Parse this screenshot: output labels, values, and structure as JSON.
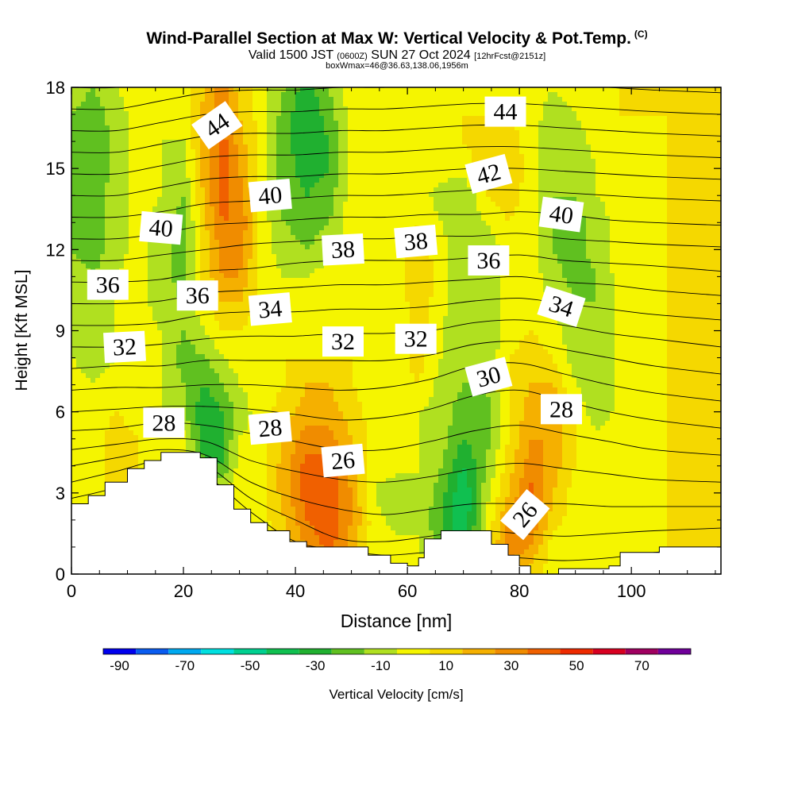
{
  "header": {
    "title": "Wind-Parallel Section at Max W: Vertical Velocity & Pot.Temp.",
    "copyright": "(C)",
    "valid_prefix": "Valid 1500 JST",
    "valid_zulu": "(0600Z)",
    "valid_date": "SUN 27 Oct 2024",
    "forecast": "[12hrFcst@2151z]",
    "box_info": "boxWmax=46@36.63,138.06,1956m"
  },
  "chart_data": {
    "type": "contour",
    "xlabel": "Distance [nm]",
    "ylabel": "Height [Kft MSL]",
    "xlim": [
      0,
      116
    ],
    "ylim": [
      0,
      18
    ],
    "x_ticks": [
      0,
      20,
      40,
      60,
      80,
      100
    ],
    "y_ticks": [
      0,
      3,
      6,
      9,
      12,
      15,
      18
    ],
    "colorbar": {
      "label": "Vertical Velocity [cm/s]",
      "bounds": [
        -90,
        -80,
        -70,
        -60,
        -50,
        -40,
        -30,
        -20,
        -10,
        0,
        10,
        20,
        30,
        40,
        50,
        60,
        70,
        80
      ],
      "tick_labels": [
        "-90",
        "-70",
        "-50",
        "-30",
        "-10",
        "10",
        "30",
        "50",
        "70"
      ],
      "colors": [
        "#0000ee",
        "#0a5cf0",
        "#00a9f0",
        "#00e0e0",
        "#00d090",
        "#10c050",
        "#20b030",
        "#60c020",
        "#b0e020",
        "#f5f500",
        "#f5d800",
        "#f5b000",
        "#f08c00",
        "#f06000",
        "#ee2a00",
        "#d80020",
        "#a00060",
        "#70009a"
      ]
    },
    "terrain_kft": [
      [
        0,
        2.6
      ],
      [
        3,
        2.9
      ],
      [
        6,
        3.4
      ],
      [
        10,
        3.9
      ],
      [
        13,
        4.2
      ],
      [
        16,
        4.5
      ],
      [
        23,
        4.3
      ],
      [
        26,
        3.3
      ],
      [
        29,
        2.4
      ],
      [
        32,
        1.9
      ],
      [
        35,
        1.6
      ],
      [
        39,
        1.2
      ],
      [
        42,
        1.0
      ],
      [
        50,
        1.0
      ],
      [
        53,
        0.7
      ],
      [
        57,
        0.4
      ],
      [
        60,
        0.3
      ],
      [
        62,
        0.6
      ],
      [
        63,
        1.3
      ],
      [
        66,
        1.6
      ],
      [
        74,
        1.6
      ],
      [
        75,
        1.1
      ],
      [
        78,
        0.7
      ],
      [
        80,
        0.3
      ],
      [
        82,
        0.0
      ],
      [
        87,
        0.2
      ],
      [
        96,
        0.3
      ],
      [
        98,
        0.8
      ],
      [
        104,
        0.8
      ],
      [
        105,
        1.0
      ],
      [
        116,
        1.0
      ]
    ],
    "theta_labels": [
      {
        "text": "44",
        "x": 26,
        "y": 16.6,
        "angle": -35
      },
      {
        "text": "40",
        "x": 35.5,
        "y": 14.0,
        "angle": -5
      },
      {
        "text": "40",
        "x": 16,
        "y": 12.8,
        "angle": 5
      },
      {
        "text": "36",
        "x": 6.5,
        "y": 10.7,
        "angle": 0
      },
      {
        "text": "36",
        "x": 22.5,
        "y": 10.3,
        "angle": 0
      },
      {
        "text": "34",
        "x": 35.5,
        "y": 9.8,
        "angle": -5
      },
      {
        "text": "32",
        "x": 9.5,
        "y": 8.4,
        "angle": -3
      },
      {
        "text": "28",
        "x": 16.5,
        "y": 5.6,
        "angle": 0
      },
      {
        "text": "28",
        "x": 35.5,
        "y": 5.4,
        "angle": -5
      },
      {
        "text": "38",
        "x": 48.5,
        "y": 12.0,
        "angle": -3
      },
      {
        "text": "38",
        "x": 61.5,
        "y": 12.3,
        "angle": -5
      },
      {
        "text": "32",
        "x": 48.5,
        "y": 8.6,
        "angle": 0
      },
      {
        "text": "32",
        "x": 61.5,
        "y": 8.7,
        "angle": 0
      },
      {
        "text": "26",
        "x": 48.5,
        "y": 4.2,
        "angle": -5
      },
      {
        "text": "44",
        "x": 77.5,
        "y": 17.1,
        "angle": 0
      },
      {
        "text": "42",
        "x": 74.5,
        "y": 14.8,
        "angle": -15
      },
      {
        "text": "40",
        "x": 87.5,
        "y": 13.3,
        "angle": 8
      },
      {
        "text": "36",
        "x": 74.5,
        "y": 11.6,
        "angle": 0
      },
      {
        "text": "34",
        "x": 87.5,
        "y": 9.9,
        "angle": 18
      },
      {
        "text": "30",
        "x": 74.5,
        "y": 7.3,
        "angle": -15
      },
      {
        "text": "28",
        "x": 87.5,
        "y": 6.1,
        "angle": 0
      },
      {
        "text": "26",
        "x": 81,
        "y": 2.2,
        "angle": -50
      }
    ],
    "w_field": {
      "x": [
        0,
        4,
        8,
        12,
        16,
        20,
        24,
        27,
        30,
        34,
        38,
        42,
        46,
        50,
        54,
        58,
        62,
        66,
        70,
        74,
        78,
        82,
        86,
        90,
        94,
        98,
        102,
        106,
        110,
        116
      ],
      "y": [
        0,
        1,
        2,
        3,
        4,
        5,
        6,
        7,
        8,
        9,
        10,
        11,
        12,
        13,
        14,
        15,
        16,
        17,
        18
      ],
      "cm_per_s": [
        [
          5,
          5,
          10,
          5,
          5,
          5,
          5,
          5,
          5,
          5,
          5,
          10,
          15,
          5,
          5,
          5,
          5,
          0,
          -10,
          5,
          30,
          15,
          5,
          5,
          5,
          5,
          5,
          10,
          15,
          10
        ],
        [
          5,
          5,
          10,
          5,
          5,
          5,
          5,
          5,
          5,
          5,
          15,
          30,
          45,
          25,
          5,
          5,
          0,
          -15,
          -30,
          5,
          35,
          30,
          5,
          5,
          5,
          5,
          5,
          10,
          15,
          10
        ],
        [
          5,
          5,
          10,
          5,
          5,
          5,
          5,
          5,
          5,
          5,
          20,
          40,
          50,
          30,
          5,
          -5,
          0,
          -20,
          -40,
          0,
          30,
          40,
          15,
          5,
          5,
          5,
          5,
          10,
          15,
          10
        ],
        [
          5,
          5,
          15,
          10,
          5,
          5,
          5,
          5,
          5,
          5,
          25,
          45,
          50,
          30,
          0,
          -10,
          0,
          -15,
          -40,
          -5,
          20,
          45,
          20,
          5,
          5,
          5,
          5,
          10,
          15,
          10
        ],
        [
          5,
          5,
          15,
          10,
          5,
          5,
          -20,
          -20,
          5,
          5,
          25,
          45,
          45,
          25,
          5,
          5,
          0,
          -10,
          -30,
          -10,
          15,
          35,
          25,
          10,
          5,
          5,
          5,
          10,
          15,
          10
        ],
        [
          5,
          5,
          15,
          10,
          5,
          5,
          -30,
          -20,
          0,
          5,
          20,
          35,
          35,
          20,
          5,
          5,
          0,
          -5,
          -20,
          -15,
          10,
          30,
          30,
          10,
          5,
          5,
          5,
          10,
          15,
          10
        ],
        [
          5,
          5,
          10,
          5,
          0,
          -10,
          -30,
          -20,
          -5,
          5,
          15,
          25,
          25,
          15,
          5,
          5,
          0,
          -5,
          -15,
          -15,
          10,
          25,
          30,
          10,
          -10,
          5,
          5,
          10,
          10,
          10
        ],
        [
          5,
          0,
          5,
          5,
          0,
          -10,
          -20,
          -10,
          0,
          5,
          10,
          20,
          20,
          10,
          5,
          5,
          10,
          -5,
          -10,
          -10,
          10,
          20,
          20,
          0,
          -10,
          5,
          5,
          10,
          10,
          10
        ],
        [
          0,
          -5,
          0,
          5,
          0,
          -15,
          -10,
          0,
          5,
          5,
          10,
          10,
          10,
          10,
          5,
          5,
          15,
          0,
          -10,
          -10,
          10,
          15,
          10,
          -5,
          -10,
          5,
          5,
          10,
          10,
          10
        ],
        [
          0,
          -5,
          0,
          5,
          0,
          -10,
          0,
          10,
          10,
          5,
          5,
          5,
          5,
          5,
          5,
          5,
          15,
          0,
          -10,
          -10,
          5,
          10,
          5,
          -10,
          -10,
          5,
          5,
          10,
          10,
          10
        ],
        [
          -5,
          -10,
          0,
          5,
          -5,
          -10,
          10,
          20,
          20,
          5,
          5,
          5,
          5,
          5,
          5,
          5,
          15,
          5,
          -10,
          -10,
          5,
          5,
          0,
          -10,
          -10,
          5,
          5,
          10,
          10,
          10
        ],
        [
          -5,
          -10,
          0,
          5,
          -5,
          -15,
          15,
          30,
          30,
          5,
          0,
          0,
          5,
          5,
          5,
          5,
          20,
          5,
          -10,
          -10,
          5,
          5,
          -5,
          -15,
          -10,
          5,
          5,
          10,
          10,
          10
        ],
        [
          -10,
          -15,
          -5,
          5,
          -5,
          -15,
          15,
          35,
          35,
          5,
          -5,
          -10,
          -5,
          5,
          5,
          5,
          15,
          5,
          -10,
          -10,
          5,
          5,
          -10,
          -15,
          -5,
          5,
          5,
          10,
          10,
          10
        ],
        [
          -10,
          -15,
          -5,
          5,
          -5,
          -15,
          20,
          40,
          40,
          5,
          -10,
          -15,
          -10,
          5,
          5,
          5,
          10,
          0,
          -10,
          0,
          10,
          5,
          -10,
          -15,
          -5,
          5,
          5,
          10,
          15,
          10
        ],
        [
          -10,
          -15,
          -5,
          5,
          0,
          -10,
          25,
          45,
          35,
          5,
          -15,
          -20,
          -15,
          5,
          5,
          5,
          5,
          -5,
          -10,
          10,
          15,
          5,
          -10,
          -10,
          0,
          5,
          5,
          10,
          15,
          10
        ],
        [
          -15,
          -20,
          -5,
          5,
          0,
          -5,
          25,
          45,
          30,
          5,
          -15,
          -25,
          -20,
          5,
          5,
          5,
          5,
          5,
          5,
          15,
          20,
          5,
          -10,
          -10,
          0,
          5,
          5,
          10,
          15,
          10
        ],
        [
          -15,
          -20,
          -5,
          5,
          0,
          0,
          25,
          45,
          25,
          5,
          -15,
          -30,
          -20,
          5,
          5,
          5,
          5,
          5,
          10,
          15,
          15,
          5,
          -10,
          -5,
          5,
          5,
          5,
          10,
          15,
          10
        ],
        [
          -10,
          -15,
          -5,
          5,
          5,
          5,
          25,
          40,
          20,
          5,
          -15,
          -30,
          -15,
          5,
          5,
          5,
          5,
          5,
          10,
          10,
          10,
          5,
          -5,
          0,
          5,
          10,
          10,
          10,
          15,
          10
        ],
        [
          -5,
          -10,
          0,
          5,
          5,
          5,
          20,
          35,
          15,
          5,
          -10,
          -25,
          -10,
          5,
          5,
          5,
          5,
          5,
          5,
          5,
          5,
          5,
          0,
          5,
          10,
          10,
          10,
          10,
          10,
          10
        ]
      ]
    },
    "theta_isentropes": {
      "levels": [
        25,
        26,
        27,
        28,
        29,
        30,
        31,
        32,
        33,
        34,
        35,
        36,
        37,
        38,
        39,
        40,
        41,
        42,
        43,
        44,
        45,
        46
      ],
      "x": [
        0,
        8,
        16,
        24,
        32,
        40,
        48,
        56,
        64,
        72,
        80,
        88,
        96,
        104,
        116
      ],
      "height_kft": [
        [
          2.8,
          3.2,
          3.8,
          3.6,
          2.3,
          1.2,
          0.9,
          0.7,
          0.8,
          0.7,
          0.6,
          0.5,
          0.6,
          0.8,
          1.0
        ],
        [
          3.4,
          3.8,
          4.2,
          4.0,
          2.8,
          2.0,
          1.3,
          1.2,
          1.4,
          1.6,
          1.5,
          1.4,
          1.5,
          1.6,
          1.7
        ],
        [
          4.0,
          4.3,
          4.6,
          4.4,
          3.4,
          2.8,
          2.4,
          2.2,
          2.4,
          2.6,
          2.6,
          2.6,
          2.5,
          2.5,
          2.5
        ],
        [
          4.6,
          4.8,
          5.0,
          4.9,
          4.2,
          3.8,
          3.5,
          3.4,
          3.6,
          3.9,
          4.1,
          3.9,
          3.7,
          3.5,
          3.4
        ],
        [
          5.3,
          5.4,
          5.6,
          5.5,
          5.2,
          4.9,
          4.6,
          4.6,
          4.9,
          5.3,
          5.5,
          5.2,
          4.9,
          4.6,
          4.4
        ],
        [
          6.0,
          6.1,
          6.2,
          6.2,
          6.1,
          5.9,
          5.7,
          5.8,
          6.1,
          6.6,
          6.8,
          6.4,
          6.0,
          5.7,
          5.4
        ],
        [
          6.8,
          6.9,
          6.9,
          7.0,
          7.0,
          6.9,
          6.8,
          6.9,
          7.2,
          7.7,
          7.8,
          7.4,
          7.0,
          6.7,
          6.4
        ],
        [
          7.6,
          7.7,
          7.7,
          7.9,
          7.9,
          7.9,
          7.9,
          7.9,
          8.1,
          8.5,
          8.6,
          8.3,
          8.0,
          7.7,
          7.4
        ],
        [
          8.4,
          8.4,
          8.5,
          8.7,
          8.8,
          8.8,
          8.9,
          8.9,
          9.0,
          9.3,
          9.4,
          9.2,
          8.9,
          8.7,
          8.4
        ],
        [
          9.2,
          9.2,
          9.3,
          9.6,
          9.7,
          9.7,
          9.8,
          9.8,
          9.9,
          10.1,
          10.2,
          10.0,
          9.8,
          9.6,
          9.4
        ],
        [
          10.0,
          10.0,
          10.1,
          10.4,
          10.5,
          10.6,
          10.7,
          10.7,
          10.8,
          10.9,
          11.0,
          10.8,
          10.7,
          10.5,
          10.3
        ],
        [
          10.8,
          10.8,
          10.9,
          11.2,
          11.3,
          11.5,
          11.6,
          11.6,
          11.6,
          11.7,
          11.8,
          11.6,
          11.5,
          11.4,
          11.2
        ],
        [
          11.6,
          11.6,
          11.8,
          12.0,
          12.2,
          12.3,
          12.4,
          12.4,
          12.5,
          12.5,
          12.6,
          12.4,
          12.3,
          12.2,
          12.1
        ],
        [
          12.4,
          12.4,
          12.6,
          12.9,
          13.0,
          13.1,
          13.2,
          13.2,
          13.3,
          13.3,
          13.4,
          13.3,
          13.1,
          13.0,
          12.9
        ],
        [
          13.2,
          13.2,
          13.4,
          13.7,
          13.8,
          13.9,
          14.0,
          14.0,
          14.1,
          14.2,
          14.2,
          14.1,
          14.0,
          13.9,
          13.8
        ],
        [
          14.0,
          14.0,
          14.3,
          14.6,
          14.7,
          14.7,
          14.8,
          14.8,
          14.9,
          15.0,
          15.0,
          14.9,
          14.8,
          14.7,
          14.6
        ],
        [
          14.8,
          14.8,
          15.1,
          15.4,
          15.5,
          15.5,
          15.6,
          15.6,
          15.7,
          15.8,
          15.8,
          15.7,
          15.6,
          15.5,
          15.4
        ],
        [
          15.6,
          15.6,
          15.9,
          16.2,
          16.3,
          16.3,
          16.4,
          16.4,
          16.5,
          16.6,
          16.6,
          16.5,
          16.4,
          16.3,
          16.2
        ],
        [
          16.4,
          16.4,
          16.7,
          17.0,
          17.1,
          17.1,
          17.2,
          17.2,
          17.3,
          17.4,
          17.4,
          17.3,
          17.2,
          17.1,
          17.0
        ],
        [
          17.2,
          17.2,
          17.5,
          17.8,
          17.9,
          17.9,
          18.0,
          18.0,
          18.1,
          18.2,
          18.2,
          18.1,
          18.0,
          17.9,
          17.8
        ],
        [
          18.0,
          18.0,
          18.3,
          18.6,
          18.7,
          18.7,
          18.8,
          18.8,
          18.9,
          19.0,
          19.0,
          18.9,
          18.8,
          18.7,
          18.6
        ],
        [
          18.8,
          18.8,
          19.1,
          19.4,
          19.5,
          19.5,
          19.6,
          19.6,
          19.7,
          19.8,
          19.8,
          19.7,
          19.6,
          19.5,
          19.4
        ]
      ]
    }
  }
}
